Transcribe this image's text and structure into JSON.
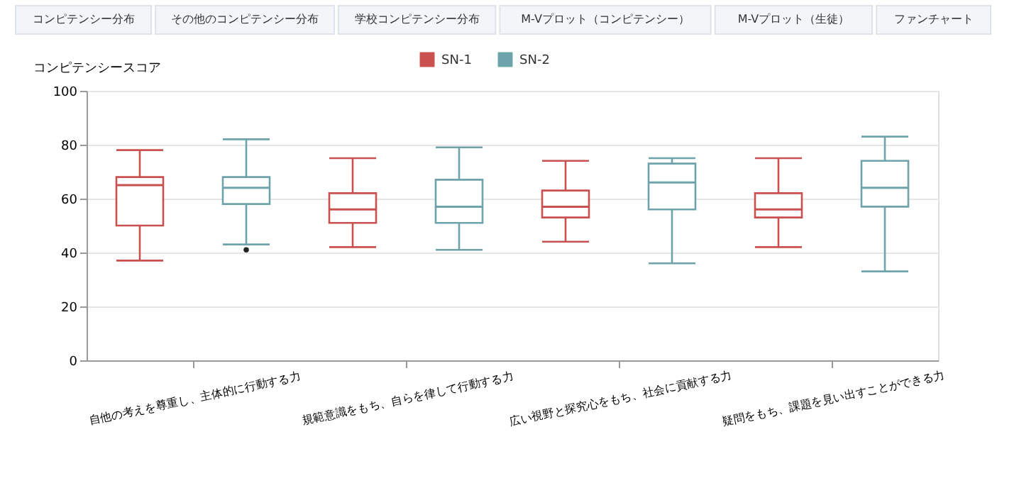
{
  "chart_data": {
    "type": "box",
    "annotations": [
      "コンピテンシー分布",
      "その他のコンピテンシー分布",
      "学校コンピテンシー分布",
      "M-Vプロット（コンピテンシー）",
      "M-Vプロット（生徒）",
      "ファンチャート"
    ],
    "categories": [
      "自他の考えを尊重し、主体的に行動する力",
      "規範意識をもち、自らを律して行動する力",
      "広い視野と探究心をもち、社会に貢献する力",
      "疑問をもち、課題を見い出すことができる力"
    ],
    "series": [
      {
        "name": "SN-1",
        "color": "#c9504f",
        "boxes": [
          {
            "low": 37,
            "q1": 50,
            "median": 65,
            "q3": 68,
            "high": 78
          },
          {
            "low": 42,
            "q1": 51,
            "median": 56,
            "q3": 62,
            "high": 75
          },
          {
            "low": 44,
            "q1": 53,
            "median": 57,
            "q3": 63,
            "high": 74
          },
          {
            "low": 42,
            "q1": 53,
            "median": 56,
            "q3": 62,
            "high": 75
          }
        ]
      },
      {
        "name": "SN-2",
        "color": "#6fa3ab",
        "boxes": [
          {
            "low": 43,
            "q1": 58,
            "median": 64,
            "q3": 68,
            "high": 82,
            "outliers": [
              41
            ]
          },
          {
            "low": 41,
            "q1": 51,
            "median": 57,
            "q3": 67,
            "high": 79
          },
          {
            "low": 36,
            "q1": 56,
            "median": 66,
            "q3": 73,
            "high": 75
          },
          {
            "low": 33,
            "q1": 57,
            "median": 64,
            "q3": 74,
            "high": 83
          }
        ]
      }
    ],
    "ylabel": "コンピテンシースコア",
    "ylim": [
      0,
      100
    ],
    "yticks": [
      0,
      20,
      40,
      60,
      80,
      100
    ],
    "grid": "y",
    "legend": "top"
  }
}
